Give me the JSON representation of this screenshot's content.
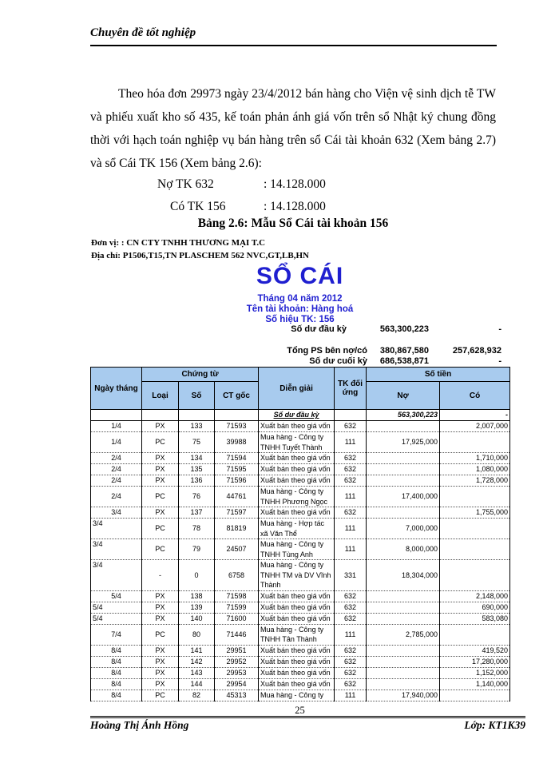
{
  "header": {
    "title": "Chuyên đề tốt nghiệp"
  },
  "body": {
    "paragraph": "Theo hóa đơn 29973 ngày 23/4/2012 bán hàng cho Viện vệ sinh dịch tễ TW và phiếu xuất kho số 435, kế toán phản ánh giá vốn trên sổ Nhật ký chung đồng thời với hạch toán nghiệp vụ bán hàng trên sổ Cái tài khoản 632 (Xem bảng 2.7) và sổ Cái TK 156 (Xem bảng 2.6):",
    "entries": [
      {
        "label": "Nợ TK 632",
        "value": ": 14.128.000"
      },
      {
        "label": "Có TK 156",
        "value": ": 14.128.000"
      }
    ],
    "caption": "Bảng 2.6: Mẫu Sổ Cái tài khoản 156"
  },
  "ledger": {
    "unit_line": "Đơn vị: : CN CTY TNHH THƯƠNG MẠI T.C",
    "address_line": "Địa chỉ: P1506,T15,TN PLASCHEM 562 NVC,GT,LB,HN",
    "title": "SỔ CÁI",
    "month_line": "Tháng 04 năm 2012",
    "account_line": "Tên tài khoản: Hàng hoá",
    "account_code_line": "Số hiệu TK: 156",
    "summary": {
      "opening": {
        "label": "Số dư đầu kỳ",
        "debit": "563,300,223",
        "credit": "-"
      },
      "totals": {
        "label": "Tổng PS bên nợ/có",
        "debit": "380,867,580",
        "credit": "257,628,932"
      },
      "closing": {
        "label": "Số dư cuối kỳ",
        "debit": "686,538,871",
        "credit": "-"
      }
    },
    "table": {
      "headers": {
        "date": "Ngày tháng",
        "chungtu": "Chứng từ",
        "loai": "Loại",
        "so": "Số",
        "ctgoc": "CT gốc",
        "diengiai": "Diễn giải",
        "tk": "TK đối ứng",
        "sotien": "Số tiền",
        "no": "Nợ",
        "co": "Có"
      },
      "opening_row": {
        "desc": "Số dư đầu kỳ",
        "debit": "563,300,223",
        "credit": "-"
      },
      "rows": [
        {
          "date": "1/4",
          "loai": "PX",
          "so": "133",
          "ct": "71593",
          "desc": "Xuất bán theo giá vốn",
          "tk": "632",
          "no": "",
          "co": "2,007,000"
        },
        {
          "date": "1/4",
          "loai": "PC",
          "so": "75",
          "ct": "39988",
          "desc": "Mua hàng - Công ty TNHH Tuyết Thành",
          "tk": "111",
          "no": "17,925,000",
          "co": ""
        },
        {
          "date": "2/4",
          "loai": "PX",
          "so": "134",
          "ct": "71594",
          "desc": "Xuất bán theo giá vốn",
          "tk": "632",
          "no": "",
          "co": "1,710,000"
        },
        {
          "date": "2/4",
          "loai": "PX",
          "so": "135",
          "ct": "71595",
          "desc": "Xuất bán theo giá vốn",
          "tk": "632",
          "no": "",
          "co": "1,080,000"
        },
        {
          "date": "2/4",
          "loai": "PX",
          "so": "136",
          "ct": "71596",
          "desc": "Xuất bán theo giá vốn",
          "tk": "632",
          "no": "",
          "co": "1,728,000"
        },
        {
          "date": "2/4",
          "loai": "PC",
          "so": "76",
          "ct": "44761",
          "desc": "Mua hàng - Công ty TNHH Phương Ngọc",
          "tk": "111",
          "no": "17,400,000",
          "co": ""
        },
        {
          "date": "3/4",
          "loai": "PX",
          "so": "137",
          "ct": "71597",
          "desc": "Xuất bán theo giá vốn",
          "tk": "632",
          "no": "",
          "co": "1,755,000"
        },
        {
          "date": "3/4",
          "loai": "PC",
          "so": "78",
          "ct": "81819",
          "desc": "Mua hàng - Hợp tác xã Văn Thể",
          "tk": "111",
          "no": "7,000,000",
          "co": "",
          "dalign": "topleft"
        },
        {
          "date": "3/4",
          "loai": "PC",
          "so": "79",
          "ct": "24507",
          "desc": "Mua hàng - Công ty TNHH Tùng Anh",
          "tk": "111",
          "no": "8,000,000",
          "co": "",
          "dalign": "topleft"
        },
        {
          "date": "3/4",
          "loai": "-",
          "so": "0",
          "ct": "6758",
          "desc": "Mua hàng - Công ty TNHH TM và DV Vĩnh Thành",
          "tk": "331",
          "no": "18,304,000",
          "co": "",
          "dalign": "topleft"
        },
        {
          "date": "5/4",
          "loai": "PX",
          "so": "138",
          "ct": "71598",
          "desc": "Xuất bán theo giá vốn",
          "tk": "632",
          "no": "",
          "co": "2,148,000"
        },
        {
          "date": "5/4",
          "loai": "PX",
          "so": "139",
          "ct": "71599",
          "desc": "Xuất bán theo giá vốn",
          "tk": "632",
          "no": "",
          "co": "690,000",
          "dalign": "left"
        },
        {
          "date": "5/4",
          "loai": "PX",
          "so": "140",
          "ct": "71600",
          "desc": "Xuất bán theo giá vốn",
          "tk": "632",
          "no": "",
          "co": "583,080",
          "dalign": "left"
        },
        {
          "date": "7/4",
          "loai": "PC",
          "so": "80",
          "ct": "71446",
          "desc": "Mua hàng - Công ty TNHH Tân Thành",
          "tk": "111",
          "no": "2,785,000",
          "co": ""
        },
        {
          "date": "8/4",
          "loai": "PX",
          "so": "141",
          "ct": "29951",
          "desc": "Xuất bán theo giá vốn",
          "tk": "632",
          "no": "",
          "co": "419,520"
        },
        {
          "date": "8/4",
          "loai": "PX",
          "so": "142",
          "ct": "29952",
          "desc": "Xuất bán theo giá vốn",
          "tk": "632",
          "no": "",
          "co": "17,280,000"
        },
        {
          "date": "8/4",
          "loai": "PX",
          "so": "143",
          "ct": "29953",
          "desc": "Xuất bán theo giá vốn",
          "tk": "632",
          "no": "",
          "co": "1,152,000"
        },
        {
          "date": "8/4",
          "loai": "PX",
          "so": "144",
          "ct": "29954",
          "desc": "Xuất bán theo giá vốn",
          "tk": "632",
          "no": "",
          "co": "1,140,000"
        },
        {
          "date": "8/4",
          "loai": "PC",
          "so": "82",
          "ct": "45313",
          "desc": "Mua hàng - Công ty",
          "tk": "111",
          "no": "17,940,000",
          "co": ""
        }
      ]
    },
    "colors": {
      "header_bg": "#A8CBEE",
      "accent_blue": "#1F1FD0"
    }
  },
  "footer": {
    "author": "Hoàng Thị Ánh Hồng",
    "page_number": "25",
    "class_label": "Lớp: KT1K39"
  }
}
